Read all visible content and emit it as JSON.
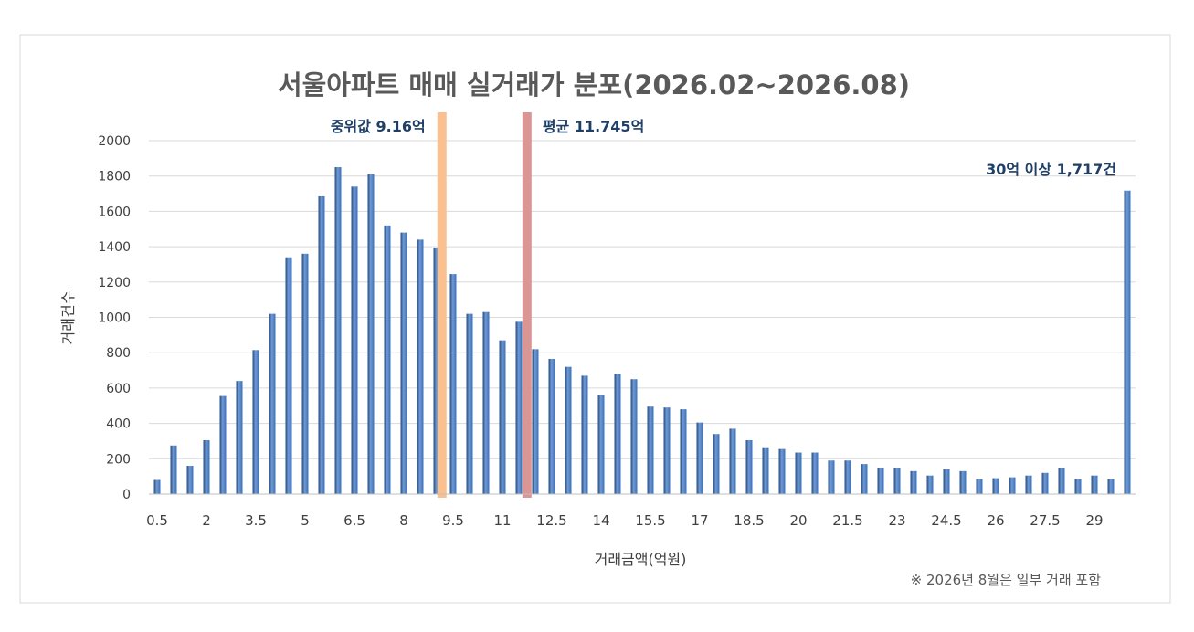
{
  "chart_data": {
    "type": "bar",
    "title": "서울아파트 매매 실거래가 분포(2026.02~2026.08)",
    "xlabel": "거래금액(억원)",
    "ylabel": "거래건수",
    "ylim": [
      0,
      2000
    ],
    "yticks": [
      0,
      200,
      400,
      600,
      800,
      1000,
      1200,
      1400,
      1600,
      1800,
      2000
    ],
    "grid": true,
    "x_tick_labels": [
      "0.5",
      "2",
      "3.5",
      "5",
      "6.5",
      "8",
      "9.5",
      "11",
      "12.5",
      "14",
      "15.5",
      "17",
      "18.5",
      "20",
      "21.5",
      "23",
      "24.5",
      "26",
      "27.5",
      "29"
    ],
    "categories": [
      0.5,
      1,
      1.5,
      2,
      2.5,
      3,
      3.5,
      4,
      4.5,
      5,
      5.5,
      6,
      6.5,
      7,
      7.5,
      8,
      8.5,
      9,
      9.5,
      10,
      10.5,
      11,
      11.5,
      12,
      12.5,
      13,
      13.5,
      14,
      14.5,
      15,
      15.5,
      16,
      16.5,
      17,
      17.5,
      18,
      18.5,
      19,
      19.5,
      20,
      20.5,
      21,
      21.5,
      22,
      22.5,
      23,
      23.5,
      24,
      24.5,
      25,
      25.5,
      26,
      26.5,
      27,
      27.5,
      28,
      28.5,
      29,
      29.5,
      30
    ],
    "values": [
      80,
      275,
      160,
      305,
      555,
      640,
      815,
      1020,
      1340,
      1360,
      1685,
      1850,
      1740,
      1810,
      1520,
      1480,
      1440,
      1395,
      1245,
      1020,
      1030,
      870,
      975,
      820,
      765,
      720,
      670,
      560,
      680,
      650,
      495,
      490,
      480,
      405,
      340,
      370,
      305,
      265,
      255,
      235,
      235,
      190,
      190,
      170,
      150,
      150,
      130,
      105,
      140,
      130,
      85,
      90,
      95,
      105,
      120,
      150,
      85,
      105,
      85,
      1717
    ],
    "reference_lines": [
      {
        "label": "중위값 9.16억",
        "value": 9.16,
        "color": "#fac090"
      },
      {
        "label": "평균 11.745억",
        "value": 11.745,
        "color": "#d99694"
      }
    ],
    "annotations": [
      {
        "text": "30억 이상 1,717건",
        "category": 30
      }
    ],
    "note": "※ 2026년 8월은 일부 거래 포함",
    "colors": {
      "bar": "#3a6fb8",
      "bar_dark": "#26487a",
      "bar_light": "#6f9bd6",
      "label": "#1f3f66",
      "title": "#595959",
      "axis_text": "#404040",
      "grid": "#d9d9d9"
    }
  }
}
